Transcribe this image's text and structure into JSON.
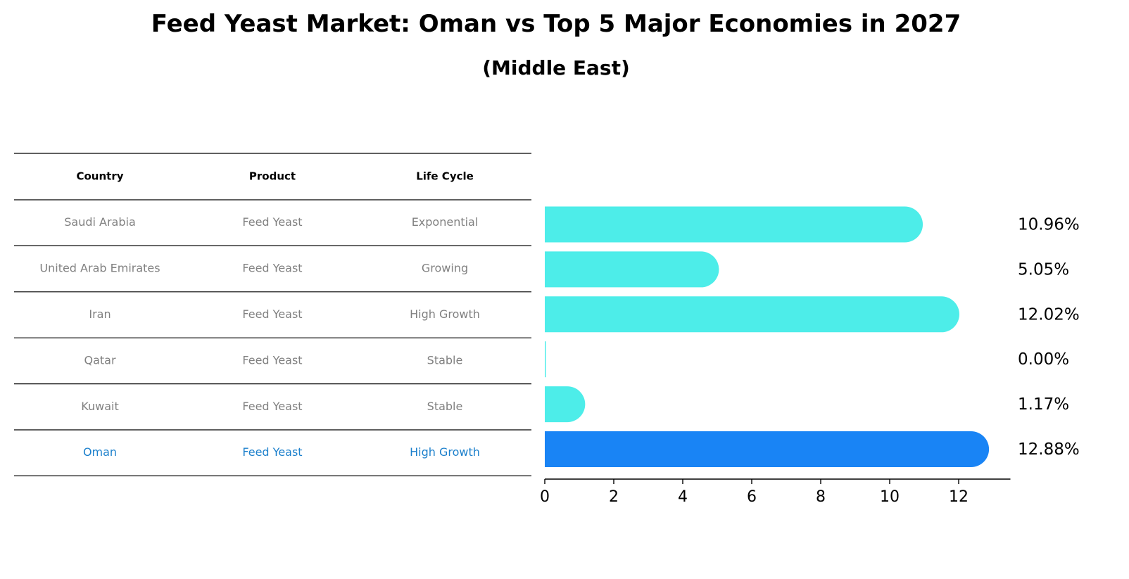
{
  "title": "Feed Yeast Market: Oman vs Top 5 Major Economies in 2027",
  "subtitle": "(Middle East)",
  "colors": {
    "bar": "#4DEDE9",
    "highlight_bar": "#1984F5",
    "highlight_text": "#1C80CC",
    "muted_text": "#808080",
    "rule": "#000000"
  },
  "table": {
    "headers": [
      "Country",
      "Product",
      "Life Cycle"
    ],
    "rows": [
      {
        "country": "Saudi Arabia",
        "product": "Feed Yeast",
        "life_cycle": "Exponential",
        "highlight": false
      },
      {
        "country": "United Arab Emirates",
        "product": "Feed Yeast",
        "life_cycle": "Growing",
        "highlight": false
      },
      {
        "country": "Iran",
        "product": "Feed Yeast",
        "life_cycle": "High Growth",
        "highlight": false
      },
      {
        "country": "Qatar",
        "product": "Feed Yeast",
        "life_cycle": "Stable",
        "highlight": false
      },
      {
        "country": "Kuwait",
        "product": "Feed Yeast",
        "life_cycle": "Stable",
        "highlight": false
      },
      {
        "country": "Oman",
        "product": "Feed Yeast",
        "life_cycle": "High Growth",
        "highlight": true
      }
    ]
  },
  "chart_data": {
    "type": "bar",
    "orientation": "horizontal",
    "title": "Feed Yeast Market: Oman vs Top 5 Major Economies in 2027",
    "subtitle": "(Middle East)",
    "categories": [
      "Saudi Arabia",
      "United Arab Emirates",
      "Iran",
      "Qatar",
      "Kuwait",
      "Oman"
    ],
    "values": [
      10.96,
      5.05,
      12.02,
      0.0,
      1.17,
      12.88
    ],
    "value_labels": [
      "10.96%",
      "5.05%",
      "12.02%",
      "0.00%",
      "1.17%",
      "12.88%"
    ],
    "highlight_category": "Oman",
    "xlim": [
      0,
      13.5
    ],
    "xticks": [
      0,
      2,
      4,
      6,
      8,
      10,
      12
    ],
    "xtick_labels": [
      "0",
      "2",
      "4",
      "6",
      "8",
      "10",
      "12"
    ],
    "xlabel": "",
    "ylabel": "",
    "grid": false,
    "legend": "none"
  }
}
